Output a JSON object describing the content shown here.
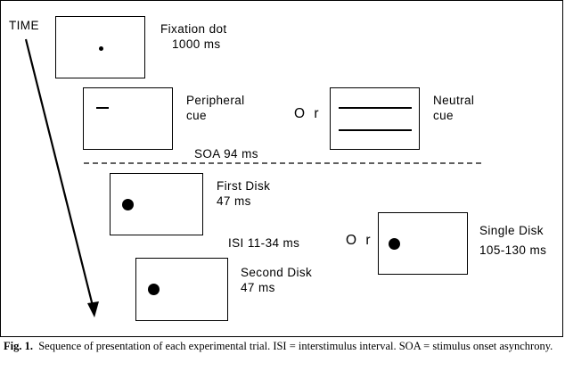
{
  "time_label": "TIME",
  "stages": {
    "fixation": {
      "line1": "Fixation dot",
      "line2": "1000 ms"
    },
    "peripheral": {
      "line1": "Peripheral",
      "line2": "cue"
    },
    "or_top": "O r",
    "neutral": {
      "line1": "Neutral",
      "line2": "cue"
    },
    "soa": "SOA 94 ms",
    "first_disk": {
      "line1": "First Disk",
      "line2": "47 ms"
    },
    "isi": "ISI 11-34 ms",
    "or_bottom": "O r",
    "single_disk": {
      "line1": "Single Disk",
      "line2": "105-130 ms"
    },
    "second_disk": {
      "line1": "Second Disk",
      "line2": "47 ms"
    }
  },
  "caption": {
    "label": "Fig. 1.",
    "text": "Sequence of presentation of each experimental trial. ISI = interstimulus interval. SOA = stimulus onset asynchrony."
  }
}
